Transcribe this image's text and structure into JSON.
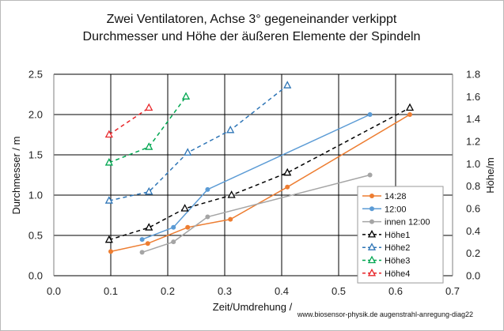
{
  "chart_data": {
    "type": "line",
    "title_lines": [
      "Zwei Ventilatoren, Achse 3° gegeneinander verkippt",
      "Durchmesser und Höhe der äußeren Elemente der Spindeln"
    ],
    "xlabel": "Zeit/Umdrehung /",
    "ylabel": "Durchmesser / m",
    "y2label": "Höhe/m",
    "credit": "www.biosensor-physik.de augenstrahl-anregung-diag22",
    "xlim": [
      0,
      0.7
    ],
    "ylim": [
      0,
      2.5
    ],
    "y2lim": [
      0,
      1.8
    ],
    "x_ticks": [
      "0.0",
      "0.1",
      "0.2",
      "0.3",
      "0.4",
      "0.5",
      "0.6",
      "0.7"
    ],
    "y_ticks": [
      "0.0",
      "0.5",
      "1.0",
      "1.5",
      "2.0",
      "2.5"
    ],
    "y2_ticks": [
      "0.0",
      "0.2",
      "0.4",
      "0.6",
      "0.8",
      "1.0",
      "1.2",
      "1.4",
      "1.6",
      "1.8"
    ],
    "grid": true,
    "legend_position": "right",
    "series": [
      {
        "name": "14:28",
        "axis": "left",
        "color": "#ED7D31",
        "style": "solid",
        "marker": "dot",
        "x": [
          0.1,
          0.165,
          0.235,
          0.31,
          0.41,
          0.625
        ],
        "y": [
          0.3,
          0.4,
          0.6,
          0.7,
          1.1,
          2.0
        ]
      },
      {
        "name": "12:00",
        "axis": "left",
        "color": "#5B9BD5",
        "style": "solid",
        "marker": "dot",
        "x": [
          0.155,
          0.21,
          0.27,
          0.555
        ],
        "y": [
          0.45,
          0.6,
          1.07,
          2.0
        ]
      },
      {
        "name": "innen 12:00",
        "axis": "left",
        "color": "#A5A5A5",
        "style": "solid",
        "marker": "dot",
        "x": [
          0.155,
          0.21,
          0.27,
          0.555
        ],
        "y": [
          0.29,
          0.42,
          0.73,
          1.25
        ]
      },
      {
        "name": "Höhe1",
        "axis": "right",
        "color": "#000000",
        "style": "dashed",
        "marker": "triangle",
        "x": [
          0.097,
          0.167,
          0.23,
          0.312,
          0.41,
          0.625
        ],
        "y": [
          0.32,
          0.43,
          0.6,
          0.72,
          0.92,
          1.5
        ]
      },
      {
        "name": "Höhe2",
        "axis": "right",
        "color": "#2E75B6",
        "style": "dashed",
        "marker": "triangle",
        "x": [
          0.097,
          0.167,
          0.235,
          0.31,
          0.41
        ],
        "y": [
          0.67,
          0.75,
          1.1,
          1.3,
          1.7
        ]
      },
      {
        "name": "Höhe3",
        "axis": "right",
        "color": "#00A650",
        "style": "dashed",
        "marker": "triangle",
        "x": [
          0.097,
          0.167,
          0.232
        ],
        "y": [
          1.01,
          1.15,
          1.6
        ]
      },
      {
        "name": "Höhe4",
        "axis": "right",
        "color": "#E8262A",
        "style": "dashed",
        "marker": "triangle",
        "x": [
          0.097,
          0.167
        ],
        "y": [
          1.26,
          1.5
        ]
      }
    ]
  }
}
